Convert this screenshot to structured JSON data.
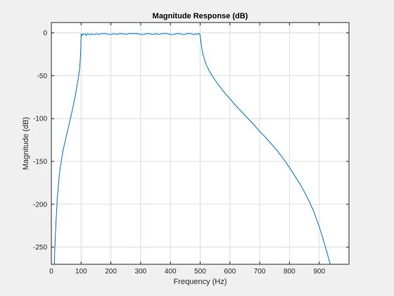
{
  "chart_data": {
    "type": "line",
    "title": "Magnitude Response (dB)",
    "xlabel": "Frequency (Hz)",
    "ylabel": "Magnitude (dB)",
    "xlim": [
      0,
      1000
    ],
    "ylim": [
      -270,
      12
    ],
    "xticks": [
      0,
      100,
      200,
      300,
      400,
      500,
      600,
      700,
      800,
      900
    ],
    "yticks": [
      0,
      -50,
      -100,
      -150,
      -200,
      -250
    ],
    "grid": true,
    "legend": "none",
    "series_color": "#0072BD",
    "series": [
      {
        "x": [
          10,
          12,
          15,
          18,
          20,
          25,
          30,
          35,
          40,
          50,
          60,
          70,
          80,
          90,
          95,
          97,
          99,
          100,
          101,
          103,
          106,
          110,
          114,
          118,
          122,
          126,
          130,
          134,
          138,
          145,
          152,
          160,
          168,
          176,
          184,
          192,
          200,
          210,
          220,
          230,
          240,
          250,
          260,
          270,
          280,
          290,
          300,
          310,
          320,
          330,
          340,
          350,
          360,
          370,
          380,
          390,
          400,
          410,
          420,
          430,
          440,
          448,
          456,
          464,
          470,
          476,
          480,
          484,
          488,
          492,
          495,
          497,
          499,
          500,
          505,
          510,
          520,
          530,
          540,
          550,
          560,
          580,
          600,
          620,
          650,
          680,
          700,
          720,
          740,
          760,
          780,
          800,
          820,
          840,
          860,
          880,
          900,
          910,
          920,
          930,
          938
        ],
        "y": [
          -270,
          -248,
          -225,
          -206,
          -193,
          -172,
          -157,
          -146,
          -136,
          -121,
          -106,
          -91,
          -74,
          -54,
          -42,
          -32,
          -18,
          -1,
          -2,
          -3,
          -1,
          -2,
          -1,
          -3,
          -1,
          -2,
          -2,
          -1,
          -2,
          -2,
          -1,
          -2,
          -1,
          -1,
          -1,
          -2,
          -2,
          -1,
          -2,
          -1,
          -1,
          -2,
          -1,
          -1,
          -1,
          -1,
          -2,
          -2,
          -1,
          -1,
          -2,
          -1,
          -2,
          -1,
          -1,
          -1,
          -2,
          -2,
          -1,
          -1,
          -2,
          -2,
          -1,
          -1,
          -1,
          -2,
          -2,
          -1,
          -2,
          -1,
          -1,
          -1,
          -2,
          -3,
          -17,
          -26,
          -37,
          -44,
          -50,
          -55,
          -60,
          -69,
          -77,
          -85,
          -96,
          -107,
          -115,
          -122,
          -130,
          -138,
          -147,
          -157,
          -168,
          -179,
          -192,
          -207,
          -226,
          -237,
          -249,
          -261,
          -271
        ]
      }
    ]
  }
}
